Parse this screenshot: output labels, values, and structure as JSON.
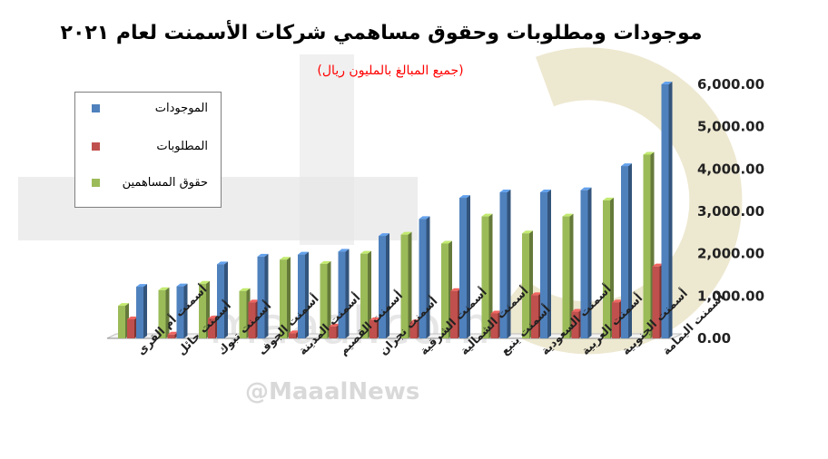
{
  "watermark": {
    "text": "maaal.com",
    "handle": "@MaaalNews"
  },
  "chart_data": {
    "type": "bar",
    "title": "موجودات ومطلوبات وحقوق مساهمي شركات الأسمنت لعام ٢٠٢١",
    "subtitle": "(جميع المبالغ بالمليون ريال)",
    "categories": [
      "أسمنت أم القرى",
      "أسمنت حائل",
      "أسمنت تبوك",
      "أسمنت الجوف",
      "أسمنت المدينة",
      "أسمنت القصيم",
      "أسمنت نجران",
      "أسمنت الشرقية",
      "أسمنت الشمالية",
      "أسمنت ينبع",
      "أسمنت السعودية",
      "أسمنت العربية",
      "أسمنت الجنوبية",
      "أسمنت اليمامة"
    ],
    "series": [
      {
        "name": "الموجودات",
        "color": "#4f81bd",
        "values": [
          1220,
          1230,
          1750,
          1930,
          1980,
          2050,
          2420,
          2820,
          3320,
          3450,
          3450,
          3500,
          4070,
          6000
        ]
      },
      {
        "name": "المطلوبات",
        "color": "#c0504d",
        "values": [
          450,
          90,
          470,
          850,
          120,
          280,
          430,
          380,
          1120,
          590,
          1020,
          630,
          850,
          1700
        ]
      },
      {
        "name": "حقوق المساهمين",
        "color": "#9bbb59",
        "values": [
          770,
          1140,
          1290,
          1120,
          1860,
          1760,
          2000,
          2450,
          2240,
          2880,
          2480,
          2880,
          3260,
          4340
        ]
      }
    ],
    "yticks": [
      "6,000.00",
      "5,000.00",
      "4,000.00",
      "3,000.00",
      "2,000.00",
      "1,000.00",
      "0.00"
    ],
    "ylim": [
      0,
      6000
    ],
    "grid": false,
    "legend_position": "top-left"
  }
}
